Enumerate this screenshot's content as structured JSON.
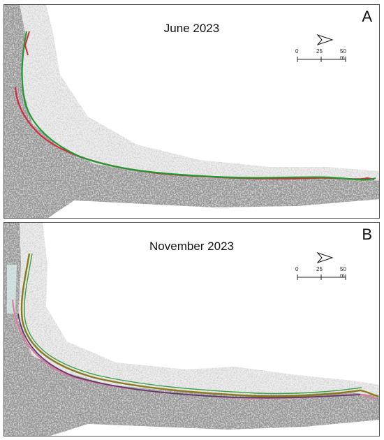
{
  "panels": [
    {
      "id": "A",
      "letter": "A",
      "title": "June 2023",
      "scale_labels": [
        "0",
        "25",
        "50 m"
      ],
      "line_colors": [
        "#d42a3a",
        "#1e9a30"
      ]
    },
    {
      "id": "B",
      "letter": "B",
      "title": "November 2023",
      "scale_labels": [
        "0",
        "25",
        "50 m"
      ],
      "line_colors": [
        "#e07a9c",
        "#5a3a6a",
        "#8a7a1e",
        "#3aa040"
      ]
    }
  ],
  "colors": {
    "rock": "#1a1a1a",
    "sand": "#e2e2e2",
    "frame": "#555555"
  },
  "icons": {
    "north_arrow": "north-arrow-icon"
  }
}
